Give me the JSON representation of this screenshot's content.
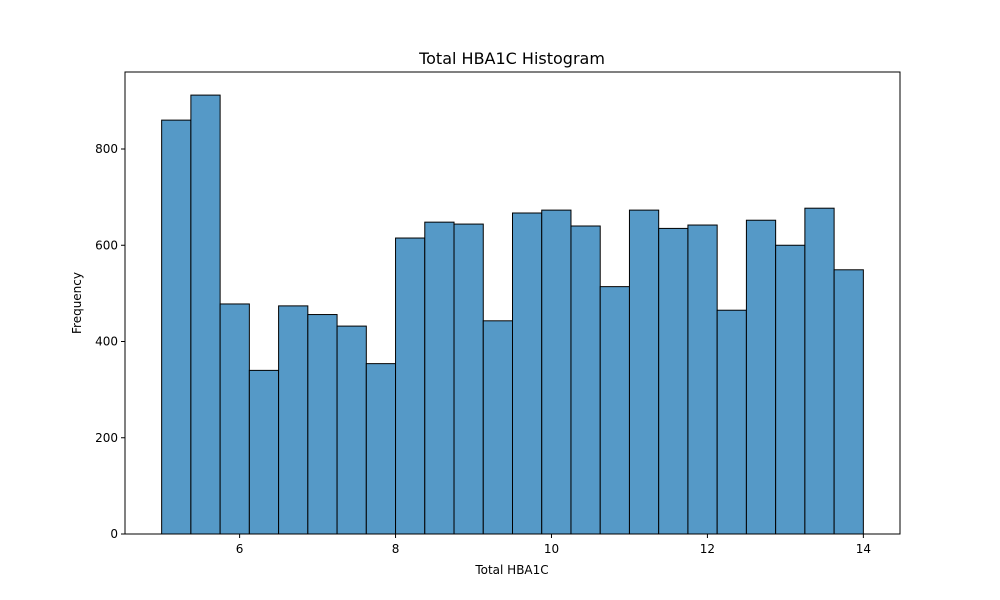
{
  "chart_data": {
    "type": "bar",
    "title": "Total HBA1C Histogram",
    "xlabel": "Total HBA1C",
    "ylabel": "Frequency",
    "xlim": [
      4.53,
      14.47
    ],
    "ylim": [
      0,
      960
    ],
    "xticks": [
      6,
      8,
      10,
      12,
      14
    ],
    "yticks": [
      0,
      200,
      400,
      600,
      800
    ],
    "bin_start": 5.0,
    "bin_width": 0.375,
    "values": [
      860,
      912,
      478,
      340,
      474,
      456,
      432,
      354,
      615,
      648,
      644,
      443,
      667,
      673,
      640,
      514,
      673,
      635,
      642,
      465,
      652,
      600,
      677,
      549
    ],
    "grid": false,
    "bar_color": "#5599c7",
    "edge_color": "#000000"
  }
}
